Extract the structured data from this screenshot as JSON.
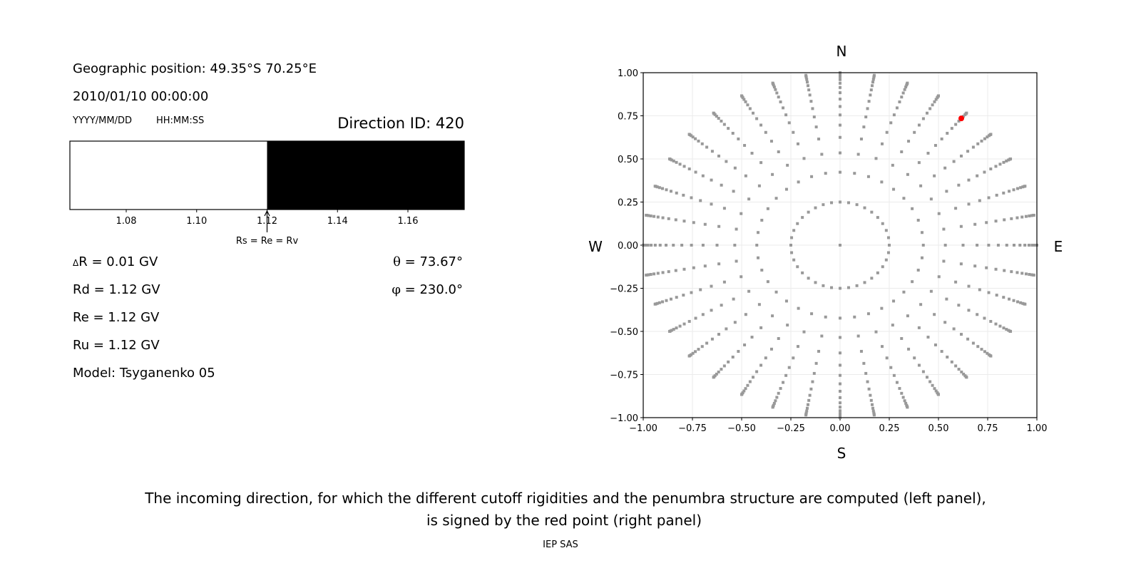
{
  "left_panel": {
    "geo_position": "Geographic position: 49.35°S 70.25°E",
    "datetime": "2010/01/10 00:00:00",
    "date_format": "YYYY/MM/DD",
    "time_format": "HH:MM:SS",
    "direction_id": "Direction ID: 420",
    "delta_r": "R = 0.01 GV",
    "delta_symbol": "Δ",
    "rd": "Rd = 1.12 GV",
    "re": "Re = 1.12 GV",
    "ru": "Ru = 1.12 GV",
    "model": "Model: Tsyganenko 05",
    "theta_symbol": "θ",
    "theta": " = 73.67°",
    "phi_symbol": "φ",
    "phi": " = 230.0°"
  },
  "right_panel": {
    "north": "N",
    "south": "S",
    "west": "W",
    "east": "E"
  },
  "caption": {
    "line1": "The incoming direction, for which the different cutoff rigidities and the penumbra structure are computed (left panel),",
    "line2": "is signed by the red point (right panel)",
    "credit": "IEP SAS"
  },
  "chart_data": [
    {
      "type": "bar",
      "xlim": [
        1.064,
        1.176
      ],
      "x_ticks": [
        "1.08",
        "1.10",
        "1.12",
        "1.14",
        "1.16"
      ],
      "tick_values": [
        1.08,
        1.1,
        1.12,
        1.14,
        1.16
      ],
      "segments": [
        {
          "from": 1.064,
          "to": 1.12,
          "color": "#ffffff"
        },
        {
          "from": 1.12,
          "to": 1.176,
          "color": "#000000"
        }
      ],
      "annotation": {
        "text": "Rs = Re = Rv",
        "x": 1.12
      }
    },
    {
      "type": "scatter",
      "xlim": [
        -1.0,
        1.0
      ],
      "ylim": [
        -1.0,
        1.0
      ],
      "x_ticks": [
        "−1.00",
        "−0.75",
        "−0.50",
        "−0.25",
        "0.00",
        "0.25",
        "0.50",
        "0.75",
        "1.00"
      ],
      "y_ticks": [
        "−1.00",
        "−0.75",
        "−0.50",
        "−0.25",
        "0.00",
        "0.25",
        "0.50",
        "0.75",
        "1.00"
      ],
      "tick_values": [
        -1.0,
        -0.75,
        -0.5,
        -0.25,
        0.0,
        0.25,
        0.5,
        0.75,
        1.0
      ],
      "grid": true,
      "grid_points": {
        "azimuths_deg": [
          0,
          10,
          20,
          30,
          40,
          50,
          60,
          70,
          80,
          90,
          100,
          110,
          120,
          130,
          140,
          150,
          160,
          170,
          180,
          190,
          200,
          210,
          220,
          230,
          240,
          250,
          260,
          270,
          280,
          290,
          300,
          310,
          320,
          330,
          340,
          350
        ],
        "radii": [
          0.25,
          0.423,
          0.535,
          0.625,
          0.696,
          0.755,
          0.804,
          0.847,
          0.884,
          0.914,
          0.939,
          0.96,
          0.976,
          0.988,
          0.996,
          1.0
        ],
        "center_point": [
          0.0,
          0.0
        ],
        "color": "#999999"
      },
      "selected_point": {
        "x": 0.616,
        "y": 0.735,
        "color": "#ff0000"
      }
    }
  ]
}
